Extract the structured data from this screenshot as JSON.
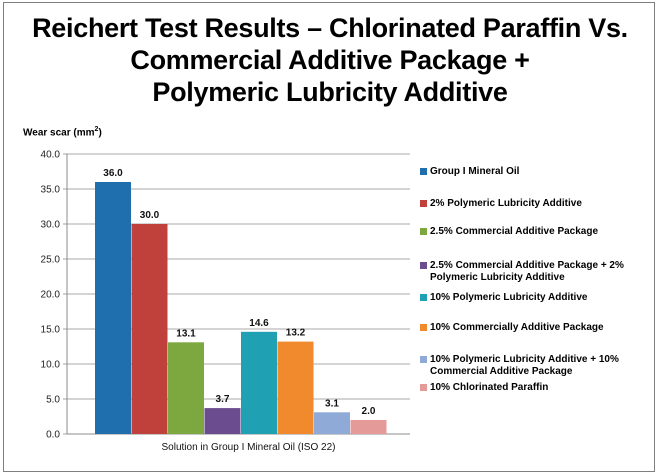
{
  "title_lines": [
    "Reichert Test Results – Chlorinated Paraffin Vs.",
    "Commercial Additive Package +",
    "Polymeric Lubricity Additive"
  ],
  "ylabel": "Wear scar (mm",
  "ylabel_sup": "2",
  "ylabel_tail": ")",
  "chart_data": {
    "type": "bar",
    "title": "Reichert Test Results – Chlorinated Paraffin Vs. Commercial Additive Package + Polymeric Lubricity Additive",
    "xlabel": "Solution in Group I Mineral Oil (ISO 22)",
    "ylabel": "Wear scar (mm²)",
    "ylim": [
      0,
      40
    ],
    "yticks": [
      "0.0",
      "5.0",
      "10.0",
      "15.0",
      "20.0",
      "25.0",
      "30.0",
      "35.0",
      "40.0"
    ],
    "grid": true,
    "legend_position": "right",
    "series": [
      {
        "name": "Group I Mineral Oil",
        "value": 36.0,
        "label": "36.0",
        "color": "#1f6fae"
      },
      {
        "name": "2% Polymeric Lubricity Additive",
        "value": 30.0,
        "label": "30.0",
        "color": "#c0403c"
      },
      {
        "name": "2.5% Commercial Additive Package",
        "value": 13.1,
        "label": "13.1",
        "color": "#7da83f"
      },
      {
        "name": "2.5% Commercial Additive Package + 2% Polymeric Lubricity Additive",
        "value": 3.7,
        "label": "3.7",
        "color": "#6b4c8f"
      },
      {
        "name": "10% Polymeric Lubricity Additive",
        "value": 14.6,
        "label": "14.6",
        "color": "#1fa0b3"
      },
      {
        "name": "10% Commercially Additive Package",
        "value": 13.2,
        "label": "13.2",
        "color": "#f08a2c"
      },
      {
        "name": "10% Polymeric Lubricity Additive + 10% Commercial Additive Package",
        "value": 3.1,
        "label": "3.1",
        "color": "#8faad6"
      },
      {
        "name": "10% Chlorinated Paraffin",
        "value": 2.0,
        "label": "2.0",
        "color": "#e59a9a"
      }
    ]
  }
}
